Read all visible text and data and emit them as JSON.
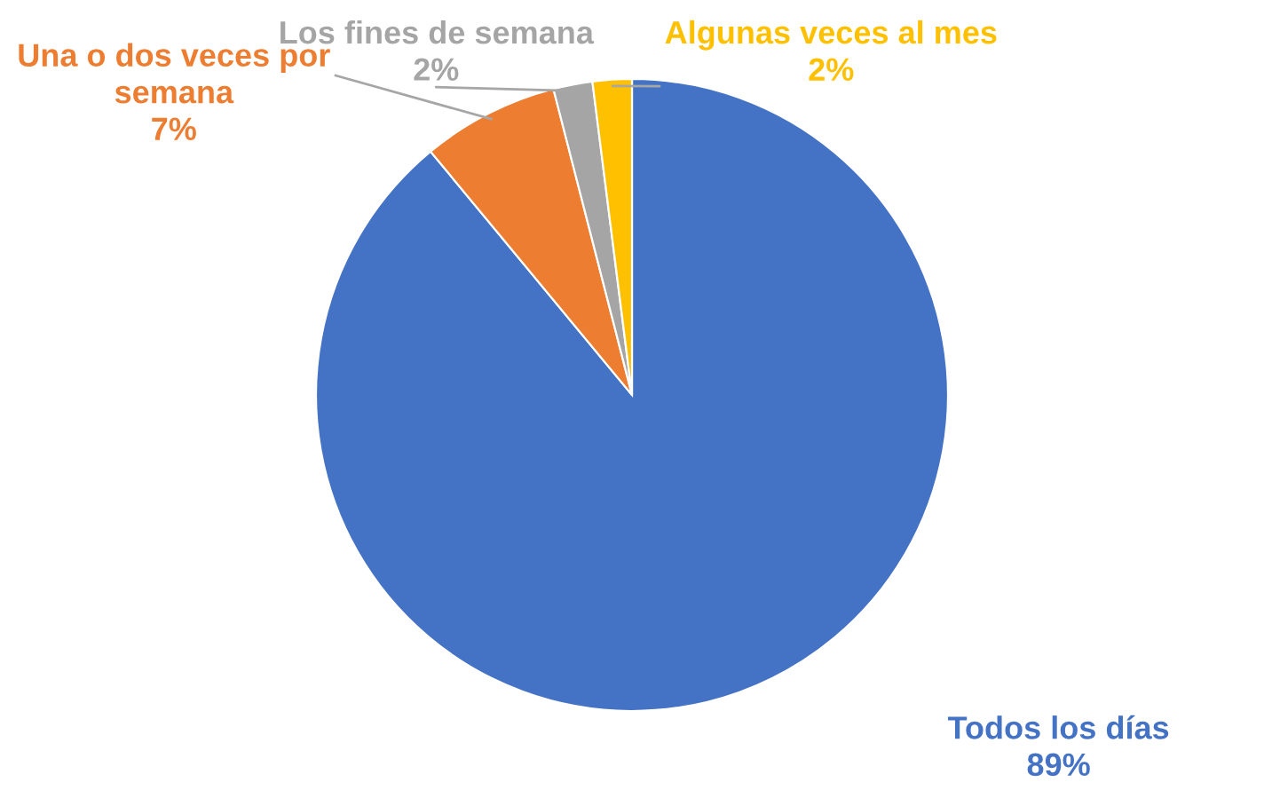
{
  "chart_data": {
    "type": "pie",
    "categories": [
      "Todos los días",
      "Una o dos veces por semana",
      "Los fines de semana",
      "Algunas veces al mes"
    ],
    "values": [
      89,
      7,
      2,
      2
    ],
    "value_labels": [
      "89%",
      "7%",
      "2%",
      "2%"
    ],
    "colors": [
      "#4472c4",
      "#ed7d31",
      "#a5a5a5",
      "#ffc000"
    ],
    "legend": false
  }
}
